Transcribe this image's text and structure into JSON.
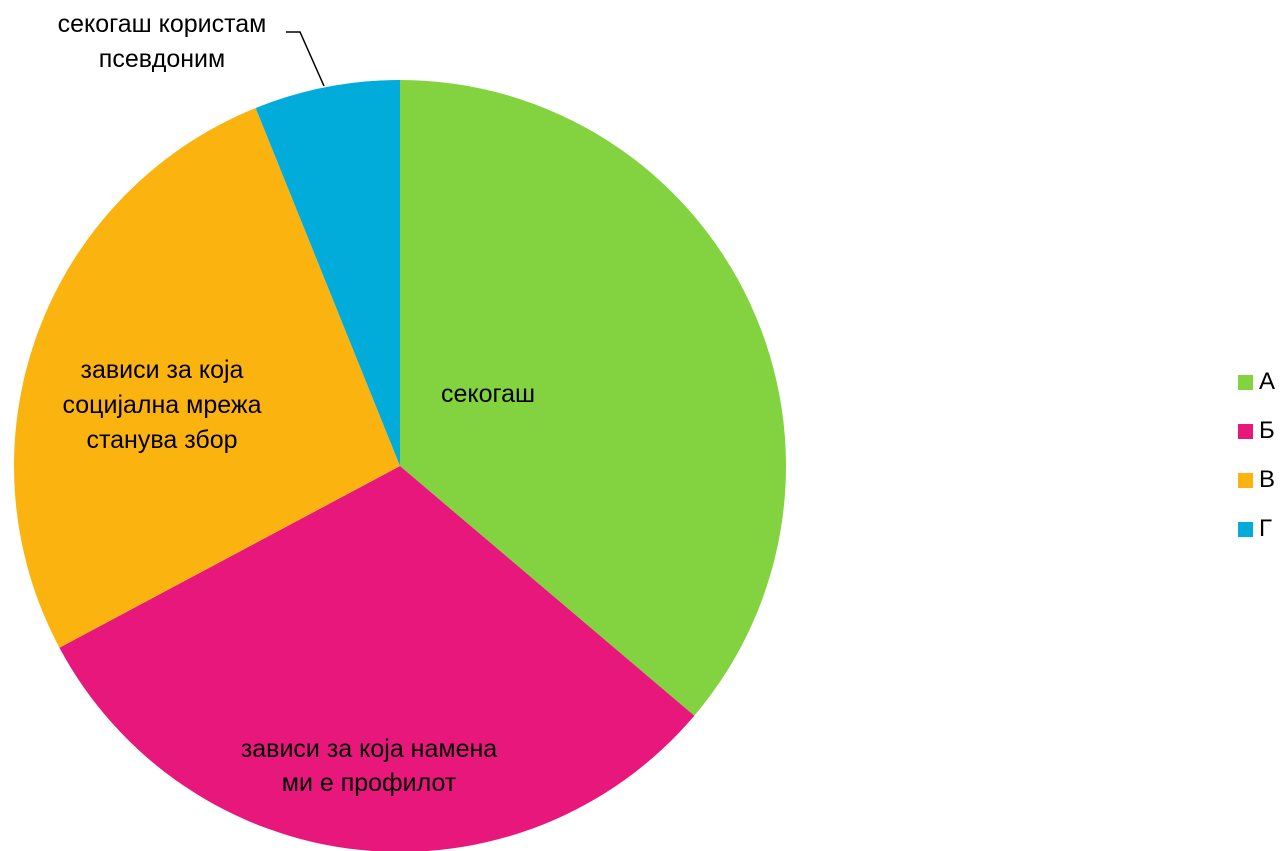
{
  "chart_data": {
    "type": "pie",
    "title": "",
    "slices": [
      {
        "legend": "А",
        "label": "секогаш",
        "value": 36.2,
        "color": "#82d33f"
      },
      {
        "legend": "Б",
        "label": "зависи за која намена ми е профилот",
        "value": 31.0,
        "color": "#e8177b"
      },
      {
        "legend": "В",
        "label": "зависи за која социјална мрежа станува збор",
        "value": 26.7,
        "color": "#fbb30f"
      },
      {
        "legend": "Г",
        "label": "секогаш користам псевдоним",
        "value": 6.1,
        "color": "#01acdb"
      }
    ],
    "legend_position": "right",
    "start_angle": "top, clockwise"
  }
}
